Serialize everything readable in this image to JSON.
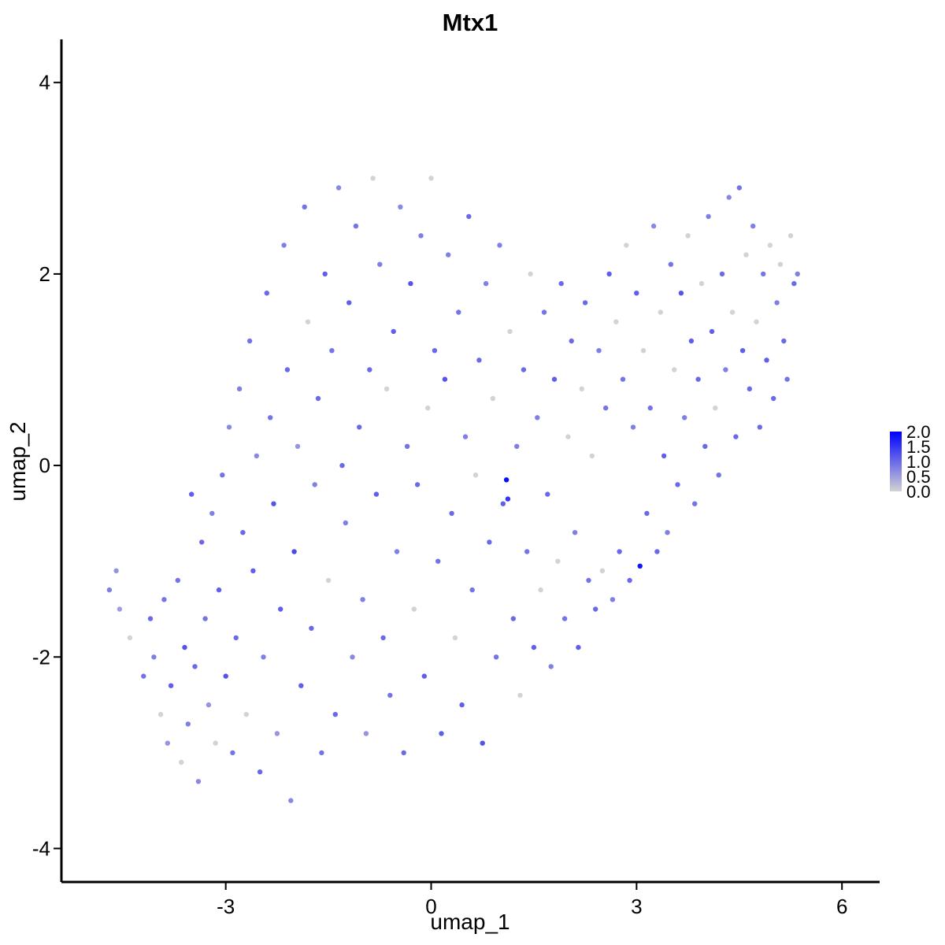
{
  "chart_data": {
    "type": "scatter",
    "title": "Mtx1",
    "xlabel": "umap_1",
    "ylabel": "umap_2",
    "xlim": [
      -5.4,
      6.55
    ],
    "ylim": [
      -4.35,
      4.45
    ],
    "x_ticks": [
      -3,
      0,
      3,
      6
    ],
    "y_ticks": [
      -4,
      -2,
      0,
      2,
      4
    ],
    "x_tick_labels": [
      "-3",
      "0",
      "3",
      "6"
    ],
    "y_tick_labels": [
      "-4",
      "-2",
      "0",
      "2",
      "4"
    ],
    "grid": false,
    "legend": {
      "position": "right",
      "type": "colorbar",
      "min": 0.0,
      "max": 2.0,
      "labels": [
        "2.0",
        "1.5",
        "1.0",
        "0.5",
        "0.0"
      ],
      "low_color": "#d3d3d3",
      "high_color": "#0000ff"
    },
    "color_scale": {
      "low": "#d3d3d3",
      "high": "#0000ff",
      "min": 0,
      "max": 2
    },
    "points": [
      [
        -4.7,
        -1.3,
        0.8
      ],
      [
        -4.6,
        -1.1,
        0.6
      ],
      [
        -4.55,
        -1.5,
        0.5
      ],
      [
        -4.4,
        -1.8,
        0.0
      ],
      [
        -4.2,
        -2.2,
        0.9
      ],
      [
        -4.1,
        -1.6,
        1.0
      ],
      [
        -4.05,
        -2.0,
        0.8
      ],
      [
        -3.95,
        -2.6,
        0.0
      ],
      [
        -3.9,
        -1.4,
        0.9
      ],
      [
        -3.85,
        -2.9,
        0.6
      ],
      [
        -3.8,
        -2.3,
        1.1
      ],
      [
        -3.7,
        -1.2,
        0.9
      ],
      [
        -3.65,
        -3.1,
        0.0
      ],
      [
        -3.6,
        -1.9,
        1.2
      ],
      [
        -3.55,
        -2.7,
        0.8
      ],
      [
        -3.5,
        -0.3,
        1.1
      ],
      [
        -3.45,
        -2.1,
        1.0
      ],
      [
        -3.4,
        -3.3,
        0.7
      ],
      [
        -3.35,
        -0.8,
        1.0
      ],
      [
        -3.3,
        -1.6,
        0.9
      ],
      [
        -3.25,
        -2.5,
        0.6
      ],
      [
        -3.2,
        -0.5,
        0.8
      ],
      [
        -3.15,
        -2.9,
        0.0
      ],
      [
        -3.1,
        -1.3,
        1.1
      ],
      [
        -3.05,
        -0.1,
        0.9
      ],
      [
        -3.0,
        -2.2,
        1.2
      ],
      [
        -2.95,
        0.4,
        0.7
      ],
      [
        -2.9,
        -3.0,
        0.9
      ],
      [
        -2.85,
        -1.8,
        1.0
      ],
      [
        -2.8,
        0.8,
        0.8
      ],
      [
        -2.75,
        -0.7,
        1.0
      ],
      [
        -2.7,
        -2.6,
        0.0
      ],
      [
        -2.65,
        1.3,
        0.9
      ],
      [
        -2.6,
        -1.1,
        1.1
      ],
      [
        -2.55,
        0.1,
        0.7
      ],
      [
        -2.5,
        -3.2,
        1.0
      ],
      [
        -2.45,
        -2.0,
        0.8
      ],
      [
        -2.4,
        1.8,
        1.0
      ],
      [
        -2.35,
        0.5,
        0.9
      ],
      [
        -2.3,
        -0.4,
        1.2
      ],
      [
        -2.25,
        -2.8,
        0.6
      ],
      [
        -2.2,
        -1.5,
        1.1
      ],
      [
        -2.15,
        2.3,
        0.8
      ],
      [
        -2.1,
        1.0,
        1.0
      ],
      [
        -2.05,
        -3.5,
        0.7
      ],
      [
        -2.0,
        -0.9,
        1.3
      ],
      [
        -1.95,
        0.2,
        0.6
      ],
      [
        -1.9,
        -2.3,
        1.1
      ],
      [
        -1.85,
        2.7,
        0.9
      ],
      [
        -1.8,
        1.5,
        0.0
      ],
      [
        -1.75,
        -1.7,
        1.0
      ],
      [
        -1.7,
        -0.2,
        0.8
      ],
      [
        -1.65,
        0.7,
        1.0
      ],
      [
        -1.6,
        -3.0,
        0.9
      ],
      [
        -1.55,
        2.0,
        1.1
      ],
      [
        -1.5,
        -1.2,
        0.0
      ],
      [
        -1.45,
        1.2,
        0.9
      ],
      [
        -1.4,
        -2.6,
        1.0
      ],
      [
        -1.35,
        2.9,
        0.7
      ],
      [
        -1.3,
        0.0,
        1.0
      ],
      [
        -1.25,
        -0.6,
        0.8
      ],
      [
        -1.2,
        1.7,
        1.1
      ],
      [
        -1.15,
        -2.0,
        0.7
      ],
      [
        -1.1,
        2.5,
        0.9
      ],
      [
        -1.05,
        0.4,
        1.0
      ],
      [
        -1.0,
        -1.4,
        0.8
      ],
      [
        -0.95,
        -2.8,
        0.6
      ],
      [
        -0.9,
        1.0,
        1.0
      ],
      [
        -0.85,
        3.0,
        0.0
      ],
      [
        -0.8,
        -0.3,
        1.1
      ],
      [
        -0.75,
        2.1,
        0.8
      ],
      [
        -0.7,
        -1.8,
        1.0
      ],
      [
        -0.65,
        0.8,
        0.0
      ],
      [
        -0.6,
        -2.4,
        0.9
      ],
      [
        -0.55,
        1.4,
        1.1
      ],
      [
        -0.5,
        -0.9,
        0.8
      ],
      [
        -0.45,
        2.7,
        0.7
      ],
      [
        -0.4,
        -3.0,
        1.0
      ],
      [
        -0.35,
        0.2,
        0.9
      ],
      [
        -0.3,
        1.9,
        1.2
      ],
      [
        -0.25,
        -1.5,
        0.0
      ],
      [
        -0.2,
        -0.2,
        1.0
      ],
      [
        -0.15,
        2.4,
        0.8
      ],
      [
        -0.1,
        -2.2,
        1.1
      ],
      [
        -0.05,
        0.6,
        0.0
      ],
      [
        0.0,
        3.0,
        0.0
      ],
      [
        0.05,
        1.2,
        1.0
      ],
      [
        0.1,
        -1.0,
        0.9
      ],
      [
        0.15,
        -2.8,
        1.1
      ],
      [
        0.2,
        0.9,
        1.2
      ],
      [
        0.25,
        2.2,
        0.8
      ],
      [
        0.3,
        -0.5,
        1.0
      ],
      [
        0.35,
        -1.8,
        0.0
      ],
      [
        0.4,
        1.6,
        0.9
      ],
      [
        0.45,
        -2.5,
        1.1
      ],
      [
        0.5,
        0.3,
        0.8
      ],
      [
        0.55,
        2.6,
        1.0
      ],
      [
        0.6,
        -1.3,
        0.9
      ],
      [
        0.65,
        -0.1,
        0.0
      ],
      [
        0.7,
        1.1,
        1.0
      ],
      [
        0.75,
        -2.9,
        1.2
      ],
      [
        0.8,
        1.9,
        0.8
      ],
      [
        0.85,
        -0.8,
        1.0
      ],
      [
        0.9,
        0.7,
        0.0
      ],
      [
        0.95,
        -2.0,
        0.9
      ],
      [
        1.0,
        2.3,
        0.8
      ],
      [
        1.05,
        -0.4,
        1.1
      ],
      [
        1.1,
        -0.15,
        1.9
      ],
      [
        1.12,
        -0.35,
        1.5
      ],
      [
        1.15,
        1.4,
        0.0
      ],
      [
        1.2,
        -1.6,
        1.0
      ],
      [
        1.25,
        0.2,
        0.8
      ],
      [
        1.3,
        -2.4,
        0.0
      ],
      [
        1.35,
        1.0,
        1.0
      ],
      [
        1.4,
        -0.9,
        0.9
      ],
      [
        1.45,
        2.0,
        0.0
      ],
      [
        1.5,
        -1.9,
        1.1
      ],
      [
        1.55,
        0.5,
        0.8
      ],
      [
        1.6,
        -1.3,
        0.0
      ],
      [
        1.65,
        1.6,
        0.9
      ],
      [
        1.7,
        -0.3,
        1.0
      ],
      [
        1.75,
        -2.1,
        0.8
      ],
      [
        1.8,
        0.9,
        1.1
      ],
      [
        1.85,
        -1.0,
        0.0
      ],
      [
        1.9,
        1.9,
        1.0
      ],
      [
        1.95,
        -1.6,
        0.9
      ],
      [
        2.0,
        0.3,
        0.0
      ],
      [
        2.05,
        1.3,
        1.0
      ],
      [
        2.1,
        -0.7,
        0.8
      ],
      [
        2.15,
        -1.9,
        1.1
      ],
      [
        2.2,
        0.8,
        0.0
      ],
      [
        2.25,
        1.7,
        1.0
      ],
      [
        2.3,
        -1.2,
        0.9
      ],
      [
        2.35,
        0.1,
        0.0
      ],
      [
        2.4,
        -1.5,
        1.0
      ],
      [
        2.45,
        1.2,
        0.8
      ],
      [
        2.5,
        -1.1,
        0.0
      ],
      [
        2.55,
        0.6,
        0.9
      ],
      [
        2.6,
        2.0,
        1.1
      ],
      [
        2.65,
        -1.4,
        0.8
      ],
      [
        2.7,
        1.5,
        0.0
      ],
      [
        2.75,
        -0.9,
        1.0
      ],
      [
        2.8,
        0.9,
        0.9
      ],
      [
        2.85,
        2.3,
        0.0
      ],
      [
        2.9,
        -1.2,
        1.0
      ],
      [
        2.95,
        0.4,
        0.8
      ],
      [
        3.0,
        1.8,
        1.1
      ],
      [
        3.05,
        -1.05,
        1.8
      ],
      [
        3.1,
        1.2,
        0.0
      ],
      [
        3.15,
        -0.5,
        1.0
      ],
      [
        3.2,
        0.6,
        0.9
      ],
      [
        3.25,
        2.5,
        0.7
      ],
      [
        3.3,
        -0.9,
        1.0
      ],
      [
        3.35,
        1.6,
        0.0
      ],
      [
        3.4,
        0.1,
        1.1
      ],
      [
        3.45,
        -0.7,
        0.8
      ],
      [
        3.5,
        2.1,
        0.9
      ],
      [
        3.55,
        1.0,
        0.0
      ],
      [
        3.6,
        -0.2,
        1.0
      ],
      [
        3.65,
        1.8,
        1.2
      ],
      [
        3.7,
        0.5,
        0.8
      ],
      [
        3.75,
        2.4,
        0.0
      ],
      [
        3.8,
        1.3,
        1.1
      ],
      [
        3.85,
        -0.4,
        0.9
      ],
      [
        3.9,
        0.9,
        1.0
      ],
      [
        3.95,
        1.9,
        0.0
      ],
      [
        4.0,
        0.2,
        1.0
      ],
      [
        4.05,
        2.6,
        0.8
      ],
      [
        4.1,
        1.4,
        1.1
      ],
      [
        4.15,
        0.6,
        0.0
      ],
      [
        4.2,
        -0.1,
        0.9
      ],
      [
        4.25,
        2.0,
        1.0
      ],
      [
        4.3,
        1.0,
        0.8
      ],
      [
        4.35,
        2.8,
        0.7
      ],
      [
        4.4,
        1.6,
        0.0
      ],
      [
        4.45,
        0.3,
        1.0
      ],
      [
        4.5,
        2.9,
        0.9
      ],
      [
        4.55,
        1.2,
        1.1
      ],
      [
        4.6,
        2.2,
        0.0
      ],
      [
        4.65,
        0.8,
        1.0
      ],
      [
        4.7,
        2.5,
        0.8
      ],
      [
        4.75,
        1.5,
        0.0
      ],
      [
        4.8,
        0.4,
        1.0
      ],
      [
        4.85,
        2.0,
        0.9
      ],
      [
        4.9,
        1.1,
        1.1
      ],
      [
        4.95,
        2.3,
        0.0
      ],
      [
        5.0,
        0.7,
        1.0
      ],
      [
        5.05,
        1.7,
        0.8
      ],
      [
        5.1,
        2.1,
        0.0
      ],
      [
        5.15,
        1.3,
        1.0
      ],
      [
        5.2,
        0.9,
        0.9
      ],
      [
        5.25,
        2.4,
        0.0
      ],
      [
        5.3,
        1.9,
        1.0
      ],
      [
        5.35,
        2.0,
        0.8
      ]
    ]
  }
}
